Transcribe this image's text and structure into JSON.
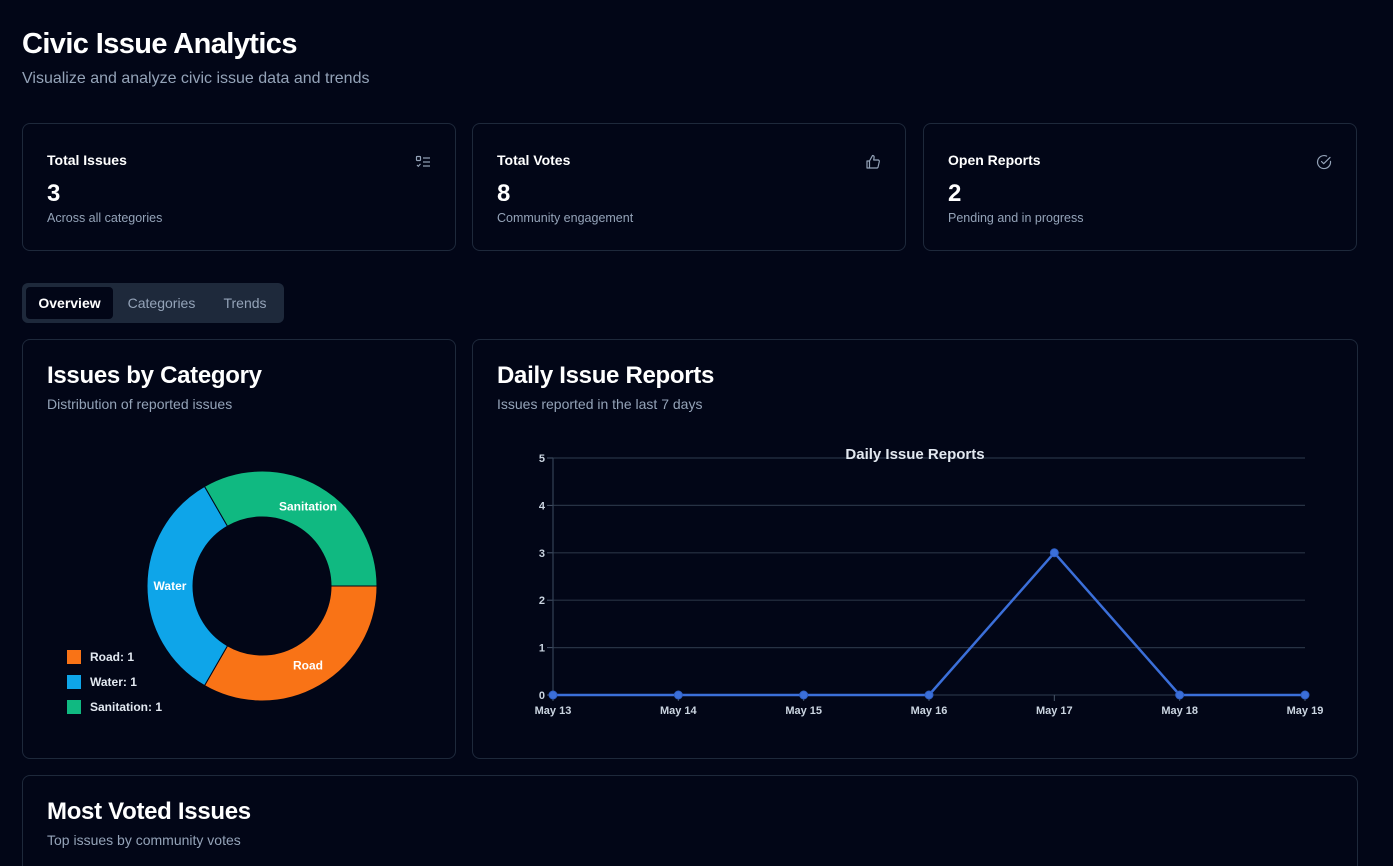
{
  "header": {
    "title": "Civic Issue Analytics",
    "subtitle": "Visualize and analyze civic issue data and trends"
  },
  "stats": [
    {
      "title": "Total Issues",
      "value": "3",
      "description": "Across all categories",
      "icon": "list-check-icon"
    },
    {
      "title": "Total Votes",
      "value": "8",
      "description": "Community engagement",
      "icon": "thumbs-up-icon"
    },
    {
      "title": "Open Reports",
      "value": "2",
      "description": "Pending and in progress",
      "icon": "circle-check-icon"
    }
  ],
  "tabs": [
    "Overview",
    "Categories",
    "Trends"
  ],
  "active_tab": "Overview",
  "category_panel": {
    "title": "Issues by Category",
    "subtitle": "Distribution of reported issues",
    "legend": [
      "Road: 1",
      "Water: 1",
      "Sanitation: 1"
    ]
  },
  "daily_panel": {
    "title": "Daily Issue Reports",
    "subtitle": "Issues reported in the last 7 days"
  },
  "voted_panel": {
    "title": "Most Voted Issues",
    "subtitle": "Top issues by community votes"
  },
  "colors": {
    "road": "#f97316",
    "water": "#0ea5e9",
    "sanitation": "#10b981",
    "line": "#3b6fd9"
  },
  "chart_data": [
    {
      "type": "pie",
      "title": "",
      "categories": [
        "Road",
        "Water",
        "Sanitation"
      ],
      "values": [
        1,
        1,
        1
      ],
      "donut": true,
      "legend": "bottom-left"
    },
    {
      "type": "line",
      "title": "Daily Issue Reports",
      "x": [
        "May 13",
        "May 14",
        "May 15",
        "May 16",
        "May 17",
        "May 18",
        "May 19"
      ],
      "series": [
        {
          "values": [
            0,
            0,
            0,
            0,
            3,
            0,
            0
          ]
        }
      ],
      "ylim": [
        0,
        5
      ],
      "yticks": [
        0,
        1,
        2,
        3,
        4,
        5
      ],
      "grid": true
    }
  ]
}
